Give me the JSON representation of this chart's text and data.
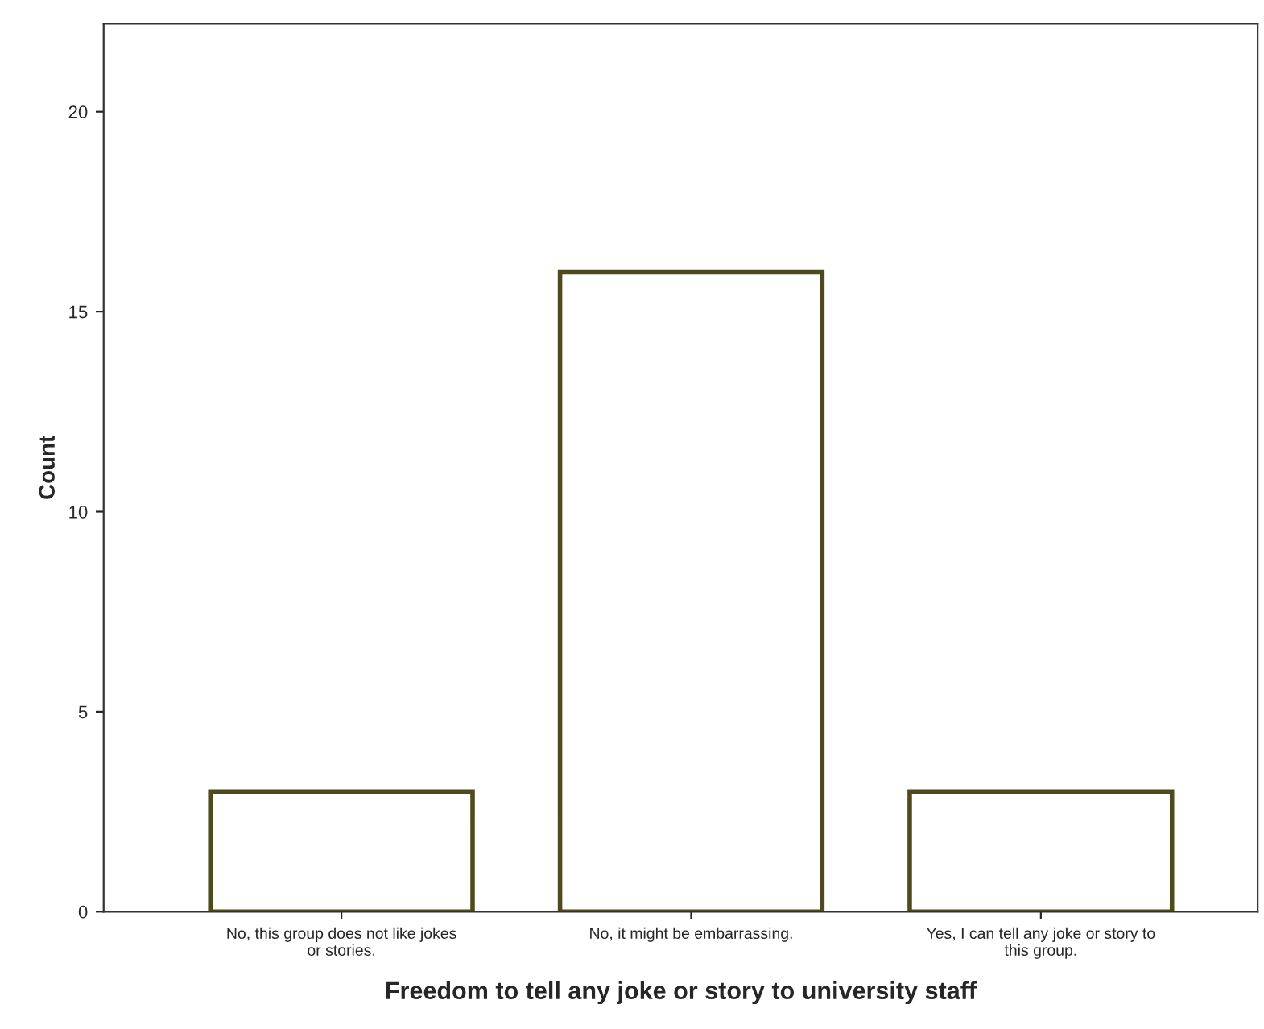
{
  "chart_data": {
    "type": "bar",
    "xlabel": "Freedom to tell any joke or story to university staff",
    "ylabel": "Count",
    "categories": [
      "No, this group does not like jokes\nor stories.",
      "No, it might be embarrassing.",
      "Yes, I can tell any joke or story to\nthis group."
    ],
    "series": [
      {
        "color": "#ffffff",
        "values": [
          3,
          16,
          3
        ]
      }
    ],
    "ylim": [
      0,
      22.2
    ],
    "yticks": [
      0,
      5,
      10,
      15,
      20
    ],
    "grid": false,
    "legend": false
  }
}
